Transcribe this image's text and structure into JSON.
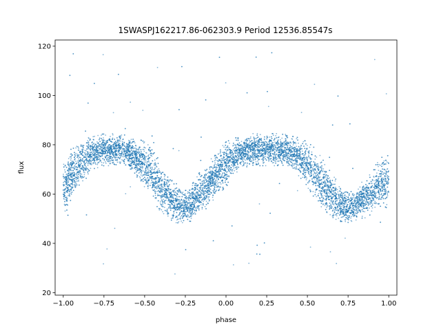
{
  "chart_data": {
    "type": "scatter",
    "title": "1SWASPJ162217.86-062303.9 Period 12536.85547s",
    "xlabel": "phase",
    "ylabel": "flux",
    "xlim": [
      -1.05,
      1.05
    ],
    "ylim": [
      19,
      122.5
    ],
    "xticks": [
      -1.0,
      -0.75,
      -0.5,
      -0.25,
      0.0,
      0.25,
      0.5,
      0.75,
      1.0
    ],
    "xtick_labels": [
      "−1.00",
      "−0.75",
      "−0.50",
      "−0.25",
      "0.00",
      "0.25",
      "0.50",
      "0.75",
      "1.00"
    ],
    "yticks": [
      20,
      40,
      60,
      80,
      100,
      120
    ],
    "ytick_labels": [
      "20",
      "40",
      "60",
      "80",
      "100",
      "120"
    ],
    "grid": false,
    "legend": "none",
    "point_color": "#1f77b4",
    "series": [
      {
        "x": [
          -1.0,
          -0.95,
          -0.9,
          -0.85,
          -0.8,
          -0.75,
          -0.7,
          -0.65,
          -0.6,
          -0.55,
          -0.5,
          -0.45,
          -0.4,
          -0.35,
          -0.3,
          -0.25,
          -0.2,
          -0.15,
          -0.1,
          -0.05,
          0.0,
          0.05,
          0.1,
          0.15,
          0.2,
          0.25,
          0.3,
          0.35,
          0.4,
          0.45,
          0.5,
          0.55,
          0.6,
          0.65,
          0.7,
          0.75,
          0.8,
          0.85,
          0.9,
          0.95,
          1.0
        ],
        "y": [
          62,
          68,
          72,
          75,
          77,
          78,
          78,
          78,
          77,
          75,
          72,
          68,
          63,
          59,
          56,
          55,
          57,
          61,
          65,
          69,
          72,
          75,
          77,
          78,
          78,
          78,
          78,
          78,
          77,
          75,
          72,
          68,
          63,
          59,
          56,
          55,
          56,
          58,
          61,
          64,
          66
        ],
        "spread": [
          9,
          8,
          7,
          6,
          5,
          5,
          5,
          5,
          5,
          6,
          7,
          8,
          8,
          7,
          6,
          5,
          6,
          7,
          7,
          7,
          7,
          6,
          5,
          5,
          5,
          5,
          5,
          5,
          5,
          6,
          7,
          8,
          8,
          7,
          6,
          5,
          5,
          6,
          7,
          8,
          9
        ]
      }
    ]
  }
}
